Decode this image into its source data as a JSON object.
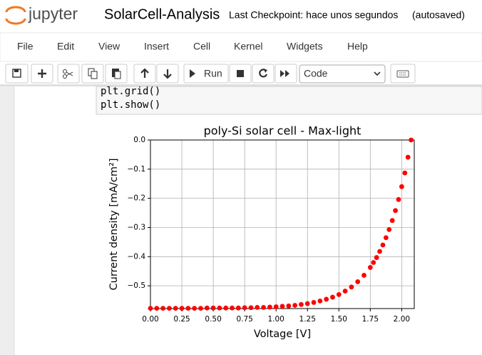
{
  "header": {
    "logo": "jupyter",
    "notebook_name": "SolarCell-Analysis",
    "checkpoint": "Last Checkpoint: hace unos segundos",
    "autosave": "(autosaved)"
  },
  "menu": [
    "File",
    "Edit",
    "View",
    "Insert",
    "Cell",
    "Kernel",
    "Widgets",
    "Help"
  ],
  "toolbar": {
    "run": "Run",
    "cell_type": "Code"
  },
  "code_cell": {
    "lines": [
      "plt.grid()",
      "plt.show()"
    ]
  },
  "chart_data": {
    "type": "scatter",
    "title": "poly-Si solar cell - Max-light",
    "x_label": "Voltage [V]",
    "y_label": "Current density [mA/cm²]",
    "color": "#ff0000",
    "grid": true,
    "x": [
      0,
      0.05,
      0.1,
      0.15,
      0.2,
      0.25,
      0.3,
      0.35,
      0.4,
      0.45,
      0.5,
      0.55,
      0.6,
      0.65,
      0.7,
      0.75,
      0.8,
      0.85,
      0.9,
      0.95,
      1.0,
      1.05,
      1.1,
      1.15,
      1.2,
      1.25,
      1.3,
      1.35,
      1.4,
      1.45,
      1.5,
      1.55,
      1.6,
      1.65,
      1.7,
      1.75,
      1.775,
      1.8,
      1.825,
      1.85,
      1.875,
      1.9,
      1.925,
      1.95,
      1.975,
      2.0,
      2.025,
      2.05,
      2.075
    ],
    "values": [
      -0.577,
      -0.577,
      -0.577,
      -0.577,
      -0.577,
      -0.577,
      -0.577,
      -0.577,
      -0.577,
      -0.576,
      -0.576,
      -0.576,
      -0.576,
      -0.576,
      -0.576,
      -0.575,
      -0.575,
      -0.574,
      -0.574,
      -0.573,
      -0.572,
      -0.57,
      -0.569,
      -0.567,
      -0.564,
      -0.561,
      -0.557,
      -0.552,
      -0.546,
      -0.539,
      -0.53,
      -0.518,
      -0.504,
      -0.486,
      -0.464,
      -0.437,
      -0.42,
      -0.403,
      -0.382,
      -0.36,
      -0.335,
      -0.307,
      -0.276,
      -0.242,
      -0.204,
      -0.16,
      -0.113,
      -0.059,
      0
    ],
    "xlim": [
      0,
      2.1
    ],
    "ylim": [
      -0.578,
      0
    ],
    "xticks": [
      {
        "value": 0,
        "label": "0.00"
      },
      {
        "value": 0.25,
        "label": "0.25"
      },
      {
        "value": 0.5,
        "label": "0.50"
      },
      {
        "value": 0.75,
        "label": "0.75"
      },
      {
        "value": 1,
        "label": "1.00"
      },
      {
        "value": 1.25,
        "label": "1.25"
      },
      {
        "value": 1.5,
        "label": "1.50"
      },
      {
        "value": 1.75,
        "label": "1.75"
      },
      {
        "value": 2,
        "label": "2.00"
      }
    ],
    "yticks": [
      {
        "value": 0,
        "label": "0.0"
      },
      {
        "value": -0.1,
        "label": "−0.1"
      },
      {
        "value": -0.2,
        "label": "−0.2"
      },
      {
        "value": -0.3,
        "label": "−0.3"
      },
      {
        "value": -0.4,
        "label": "−0.4"
      },
      {
        "value": -0.5,
        "label": "−0.5"
      }
    ]
  }
}
